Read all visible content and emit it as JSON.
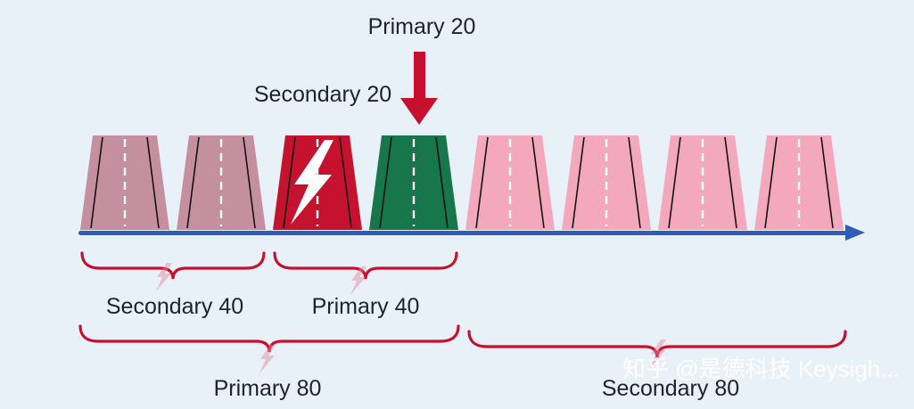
{
  "labels": {
    "primary20": "Primary 20",
    "secondary20": "Secondary 20",
    "secondary40": "Secondary 40",
    "primary40": "Primary 40",
    "primary80": "Primary 80",
    "secondary80": "Secondary 80"
  },
  "watermark": "知乎 @是德科技 Keysigh...",
  "colors": {
    "background": "#e9f1f8",
    "text": "#1f222b",
    "axis": "#2f5cb5",
    "brace": "#c8102e",
    "arrow": "#c8102e"
  },
  "channels": [
    {
      "name": "secondary-40-channel-1",
      "color": "#c48f9e",
      "lightning": false
    },
    {
      "name": "secondary-40-channel-2",
      "color": "#c48f9e",
      "lightning": false
    },
    {
      "name": "secondary-20-channel",
      "color": "#c4122f",
      "lightning": true
    },
    {
      "name": "primary-20-channel",
      "color": "#17774a",
      "lightning": false
    },
    {
      "name": "secondary-80-channel-1",
      "color": "#f3a8bc",
      "lightning": false
    },
    {
      "name": "secondary-80-channel-2",
      "color": "#f3a8bc",
      "lightning": false
    },
    {
      "name": "secondary-80-channel-3",
      "color": "#f3a8bc",
      "lightning": false
    },
    {
      "name": "secondary-80-channel-4",
      "color": "#f3a8bc",
      "lightning": false
    }
  ]
}
